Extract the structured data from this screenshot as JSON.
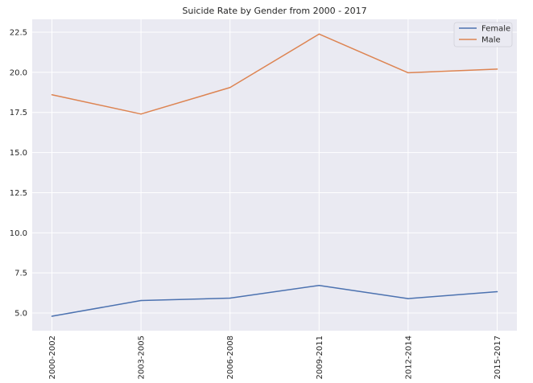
{
  "chart_data": {
    "type": "line",
    "title": "Suicide Rate by Gender from 2000 - 2017",
    "xlabel": "",
    "ylabel": "",
    "categories": [
      "2000-2002",
      "2003-2005",
      "2006-2008",
      "2009-2011",
      "2012-2014",
      "2015-2017"
    ],
    "series": [
      {
        "name": "Female",
        "color": "#4c72b0",
        "values": [
          4.8,
          5.78,
          5.93,
          6.72,
          5.9,
          6.33
        ]
      },
      {
        "name": "Male",
        "color": "#dd8452",
        "values": [
          18.6,
          17.4,
          19.05,
          22.38,
          19.97,
          20.2
        ]
      }
    ],
    "ylim": [
      3.9,
      23.3
    ],
    "yticks": [
      5.0,
      7.5,
      10.0,
      12.5,
      15.0,
      17.5,
      20.0,
      22.5
    ],
    "ytick_labels": [
      "5.0",
      "7.5",
      "10.0",
      "12.5",
      "15.0",
      "17.5",
      "20.0",
      "22.5"
    ],
    "grid": true,
    "legend": "top-right",
    "background_color": "#eaeaf2",
    "grid_color": "#ffffff"
  }
}
